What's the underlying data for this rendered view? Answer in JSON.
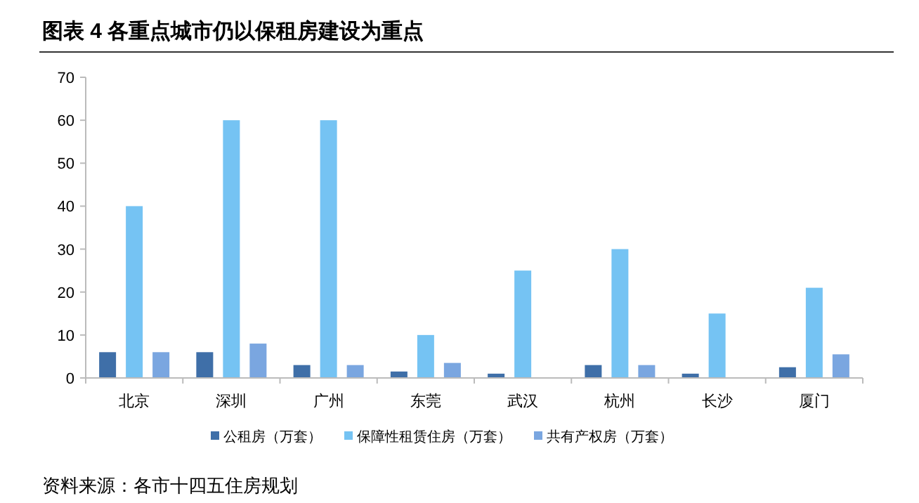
{
  "chart_data": {
    "type": "bar",
    "title": "图表 4 各重点城市仍以保租房建设为重点",
    "categories": [
      "北京",
      "深圳",
      "广州",
      "东莞",
      "武汉",
      "杭州",
      "长沙",
      "厦门"
    ],
    "series": [
      {
        "name": "公租房（万套）",
        "color": "#3f6fa8",
        "values": [
          6,
          6,
          3,
          1.5,
          1,
          3,
          1,
          2.5
        ]
      },
      {
        "name": "保障性租赁住房（万套）",
        "color": "#75c3f3",
        "values": [
          40,
          60,
          60,
          10,
          25,
          30,
          15,
          21
        ]
      },
      {
        "name": "共有产权房（万套）",
        "color": "#7aa6e0",
        "values": [
          6,
          8,
          3,
          3.5,
          null,
          3,
          null,
          5.5
        ]
      }
    ],
    "ylim": [
      0,
      70
    ],
    "yticks": [
      0,
      10,
      20,
      30,
      40,
      50,
      60,
      70
    ],
    "grid": false,
    "legend": "bottom",
    "annotations": [
      "资料来源：各市十四五住房规划"
    ]
  }
}
